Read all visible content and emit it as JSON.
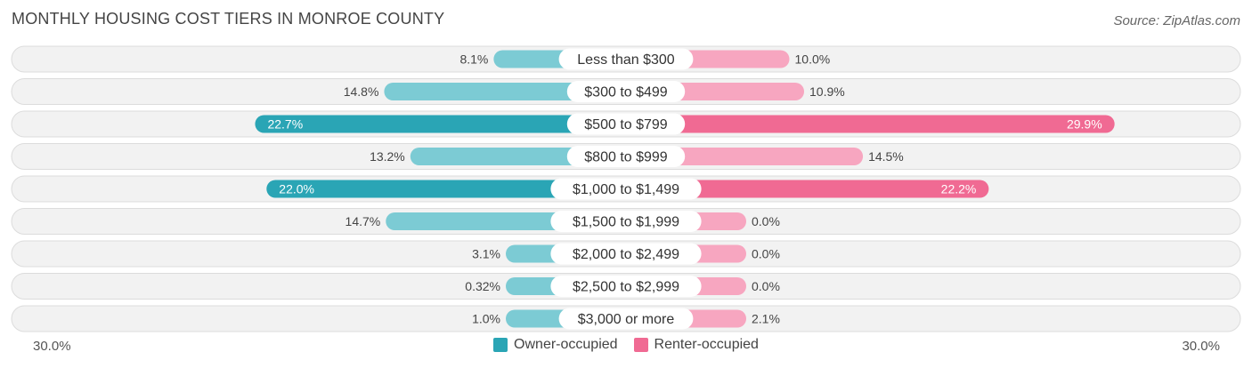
{
  "title": "MONTHLY HOUSING COST TIERS IN MONROE COUNTY",
  "source": "Source: ZipAtlas.com",
  "colors": {
    "owner_strong": "#2aa5b5",
    "owner_light": "#7ccbd4",
    "renter_strong": "#f06a93",
    "renter_light": "#f7a6c0",
    "row_bg": "#f2f2f2",
    "row_border": "#dcdcdc"
  },
  "axis": {
    "left_label": "30.0%",
    "right_label": "30.0%"
  },
  "legend": {
    "owner": "Owner-occupied",
    "renter": "Renter-occupied"
  },
  "chart_data": {
    "type": "bar",
    "orientation": "diverging-horizontal",
    "title": "MONTHLY HOUSING COST TIERS IN MONROE COUNTY",
    "categories": [
      "Less than $300",
      "$300 to $499",
      "$500 to $799",
      "$800 to $999",
      "$1,000 to $1,499",
      "$1,500 to $1,999",
      "$2,000 to $2,499",
      "$2,500 to $2,999",
      "$3,000 or more"
    ],
    "series": [
      {
        "name": "Owner-occupied",
        "values": [
          8.1,
          14.8,
          22.7,
          13.2,
          22.0,
          14.7,
          3.1,
          0.32,
          1.0
        ],
        "labels": [
          "8.1%",
          "14.8%",
          "22.7%",
          "13.2%",
          "22.0%",
          "14.7%",
          "3.1%",
          "0.32%",
          "1.0%"
        ]
      },
      {
        "name": "Renter-occupied",
        "values": [
          10.0,
          10.9,
          29.9,
          14.5,
          22.2,
          0.0,
          0.0,
          0.0,
          2.1
        ],
        "labels": [
          "10.0%",
          "10.9%",
          "29.9%",
          "14.5%",
          "22.2%",
          "0.0%",
          "0.0%",
          "0.0%",
          "2.1%"
        ]
      }
    ],
    "xlim": [
      -30,
      30
    ],
    "legend_position": "bottom-center"
  }
}
